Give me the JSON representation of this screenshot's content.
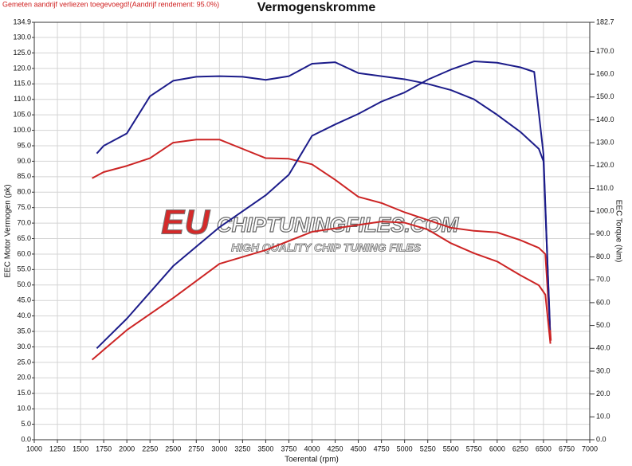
{
  "chart_data": {
    "type": "line",
    "title": "Vermogenskromme",
    "subtitle": "Gemeten aandrijf verliezen toegevoegd!(Aandrijf rendement: 95.0%)",
    "x_label": "Toerental (rpm)",
    "y_label": "EEC Motor Vermogen (pk)",
    "y2_label": "EEC Torque (Nm)",
    "annotations": [
      "EU",
      "CHIPTUNINGFILES.COM",
      "HIGH QUALITY CHIP TUNING FILES"
    ],
    "xlim": [
      1000,
      7000
    ],
    "xticks": [
      1000,
      1250,
      1500,
      1750,
      2000,
      2250,
      2500,
      2750,
      3000,
      3250,
      3500,
      3750,
      4000,
      4250,
      4500,
      4750,
      5000,
      5250,
      5500,
      5750,
      6000,
      6250,
      6500,
      6750,
      7000
    ],
    "ylim": [
      0,
      134.9
    ],
    "yticks": [
      {
        "value": 0,
        "label": "0.0"
      },
      {
        "value": 5,
        "label": "5.0"
      },
      {
        "value": 10,
        "label": "10.0"
      },
      {
        "value": 15,
        "label": "15.0"
      },
      {
        "value": 20,
        "label": "20.0"
      },
      {
        "value": 25,
        "label": "25.0"
      },
      {
        "value": 30,
        "label": "30.0"
      },
      {
        "value": 35,
        "label": "35.0"
      },
      {
        "value": 40,
        "label": "40.0"
      },
      {
        "value": 45,
        "label": "45.0"
      },
      {
        "value": 50,
        "label": "50.0"
      },
      {
        "value": 55,
        "label": "55.0"
      },
      {
        "value": 60,
        "label": "60.0"
      },
      {
        "value": 65,
        "label": "65.0"
      },
      {
        "value": 70,
        "label": "70.0"
      },
      {
        "value": 75,
        "label": "75.0"
      },
      {
        "value": 80,
        "label": "80.0"
      },
      {
        "value": 85,
        "label": "85.0"
      },
      {
        "value": 90,
        "label": "90.0"
      },
      {
        "value": 95,
        "label": "95.0"
      },
      {
        "value": 100,
        "label": "100.0"
      },
      {
        "value": 105,
        "label": "105.0"
      },
      {
        "value": 110,
        "label": "110.0"
      },
      {
        "value": 115,
        "label": "115.0"
      },
      {
        "value": 120,
        "label": "120.0"
      },
      {
        "value": 125,
        "label": "125.0"
      },
      {
        "value": 130,
        "label": "130.0"
      },
      134.9
    ],
    "y2lim": [
      0,
      182.7
    ],
    "y2ticks": [
      {
        "value": 0,
        "label": "0.0"
      },
      {
        "value": 10,
        "label": "10.0"
      },
      {
        "value": 20,
        "label": "20.0"
      },
      {
        "value": 30,
        "label": "30.0"
      },
      {
        "value": 40,
        "label": "40.0"
      },
      {
        "value": 50,
        "label": "50.0"
      },
      {
        "value": 60,
        "label": "60.0"
      },
      {
        "value": 70,
        "label": "70.0"
      },
      {
        "value": 80,
        "label": "80.0"
      },
      {
        "value": 90,
        "label": "90.0"
      },
      {
        "value": 100,
        "label": "100.0"
      },
      {
        "value": 110,
        "label": "110.0"
      },
      {
        "value": 120,
        "label": "120.0"
      },
      {
        "value": 130,
        "label": "130.0"
      },
      {
        "value": 140,
        "label": "140.0"
      },
      {
        "value": 150,
        "label": "150.0"
      },
      {
        "value": 160,
        "label": "160.0"
      },
      {
        "value": 170,
        "label": "170.0"
      },
      182.7
    ],
    "grid": true,
    "series": [
      {
        "color": "#1c1c8a",
        "axis": "y",
        "x": [
          1675,
          1750,
          2000,
          2250,
          2500,
          2750,
          3000,
          3250,
          3500,
          3750,
          4000,
          4250,
          4500,
          4750,
          5000,
          5250,
          5500,
          5750,
          6000,
          6250,
          6450,
          6500,
          6570
        ],
        "values": [
          92.5,
          95,
          99,
          111,
          116,
          117.3,
          117.5,
          117.3,
          116.3,
          117.5,
          121.5,
          122,
          118.5,
          117.5,
          116.5,
          115,
          113,
          110,
          105,
          99.5,
          94,
          90,
          37
        ]
      },
      {
        "color": "#cc2424",
        "axis": "y",
        "x": [
          1625,
          1750,
          2000,
          2250,
          2500,
          2750,
          3000,
          3250,
          3500,
          3750,
          4000,
          4250,
          4500,
          4750,
          5000,
          5250,
          5500,
          5750,
          6000,
          6250,
          6450,
          6520,
          6580
        ],
        "values": [
          84.5,
          86.5,
          88.5,
          91,
          96,
          97,
          97,
          94,
          91,
          90.8,
          89,
          84,
          78.5,
          76.5,
          73.5,
          71,
          68.5,
          67.5,
          67,
          64.5,
          62,
          60,
          32
        ]
      },
      {
        "color": "#1c1c8a",
        "axis": "y2",
        "x": [
          1675,
          2000,
          2500,
          3000,
          3500,
          3750,
          4000,
          4250,
          4500,
          4750,
          5000,
          5250,
          5500,
          5750,
          6000,
          6250,
          6400,
          6500,
          6570
        ],
        "values": [
          40,
          53,
          76,
          93,
          107,
          116,
          133,
          138,
          142.6,
          148,
          152,
          157.6,
          162,
          165.6,
          165,
          163,
          161,
          125,
          48
        ]
      },
      {
        "color": "#cc2424",
        "axis": "y2",
        "x": [
          1625,
          2000,
          2500,
          3000,
          3500,
          4000,
          4500,
          4750,
          5000,
          5250,
          5500,
          5750,
          6000,
          6250,
          6450,
          6520,
          6575
        ],
        "values": [
          35,
          48,
          62,
          77,
          83,
          91,
          94,
          95.5,
          95,
          92,
          86,
          81.6,
          78,
          72,
          67.6,
          63.5,
          42
        ]
      }
    ]
  }
}
